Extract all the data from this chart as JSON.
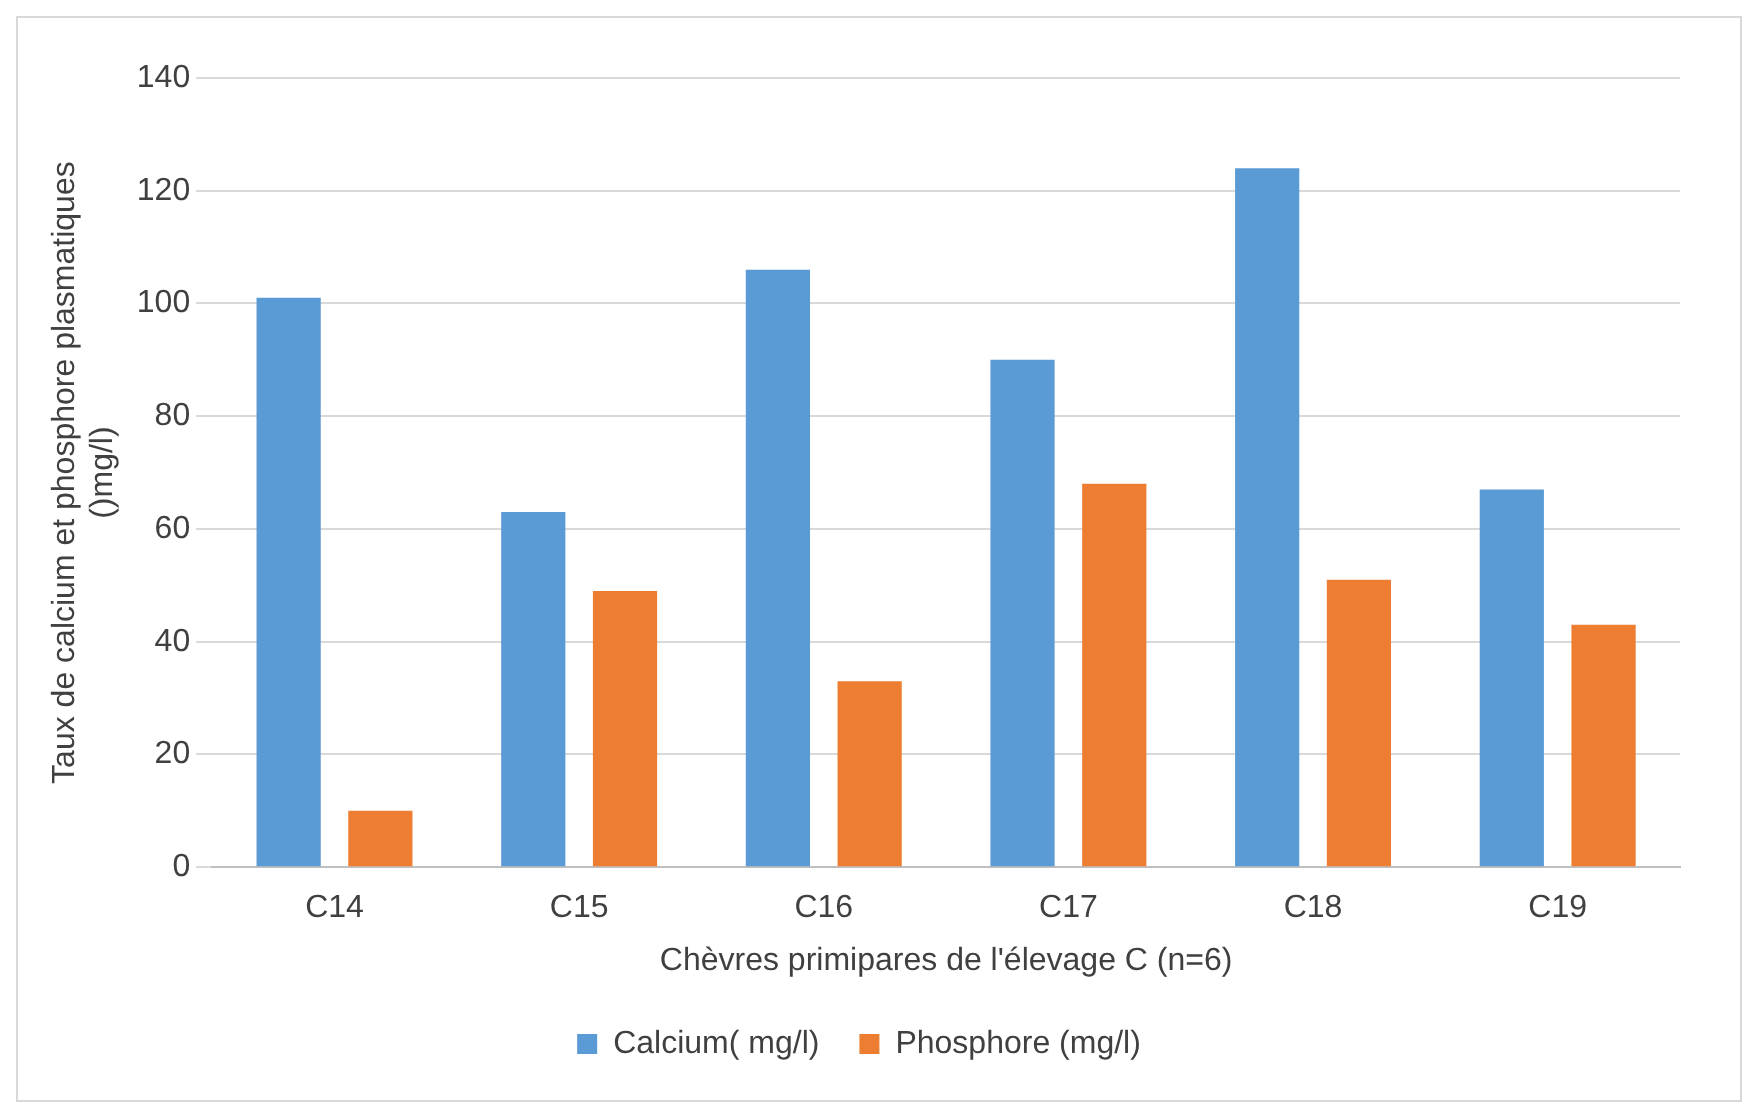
{
  "chart_data": {
    "type": "bar",
    "xlabel": "Chèvres primipares de l'élevage C (n=6)",
    "ylabel": "Taux de calcium et phosphore plasmatiques\n()mg/l)",
    "categories": [
      "C14",
      "C15",
      "C16",
      "C17",
      "C18",
      "C19"
    ],
    "series": [
      {
        "name": "Calcium( mg/l)",
        "color": "#5b9bd5",
        "values": [
          101,
          63,
          106,
          90,
          124,
          67
        ]
      },
      {
        "name": "Phosphore (mg/l)",
        "color": "#ed7d31",
        "values": [
          10,
          49,
          33,
          68,
          51,
          43
        ]
      }
    ],
    "ylim": [
      0,
      140
    ],
    "yticks": [
      0,
      20,
      40,
      60,
      80,
      100,
      120,
      140
    ],
    "grid": "y",
    "legend": "bottom"
  }
}
